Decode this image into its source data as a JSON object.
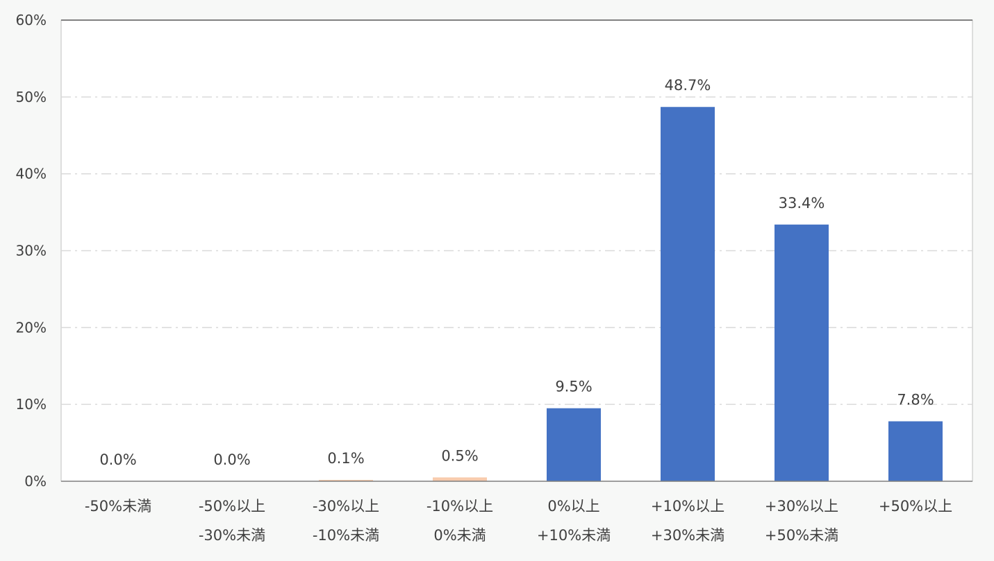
{
  "chart_data": {
    "type": "bar",
    "title": "",
    "xlabel": "",
    "ylabel": "",
    "ylim": [
      0,
      60
    ],
    "yticks": [
      "0%",
      "10%",
      "20%",
      "30%",
      "40%",
      "50%",
      "60%"
    ],
    "grid": true,
    "legend": "none",
    "categories": [
      [
        "-50%未満"
      ],
      [
        "-50%以上",
        "-30%未満"
      ],
      [
        "-30%以上",
        "-10%未満"
      ],
      [
        "-10%以上",
        "0%未満"
      ],
      [
        "0%以上",
        "+10%未満"
      ],
      [
        "+10%以上",
        "+30%未満"
      ],
      [
        "+30%以上",
        "+50%未満"
      ],
      [
        "+50%以上"
      ]
    ],
    "values": [
      0.0,
      0.0,
      0.1,
      0.5,
      9.5,
      48.7,
      33.4,
      7.8
    ],
    "labels": [
      "0.0%",
      "0.0%",
      "0.1%",
      "0.5%",
      "9.5%",
      "48.7%",
      "33.4%",
      "7.8%"
    ],
    "colors": {
      "bar": "#4472c4",
      "bar_negative": "#f8cbad",
      "grid": "#d9d9d9",
      "axis": "#7f7f7f",
      "plot_bg": "#ffffff"
    }
  }
}
